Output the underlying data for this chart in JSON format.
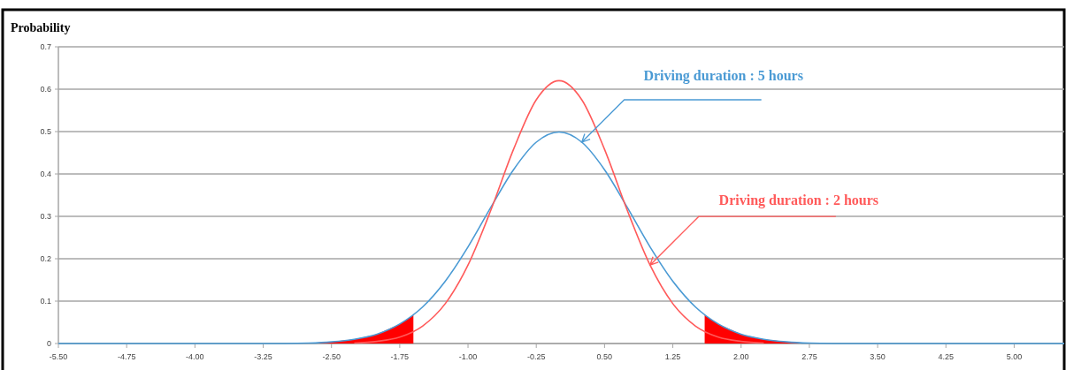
{
  "chart_data": {
    "type": "line",
    "ylabel": "Probability",
    "xlim": [
      -5.5,
      5.55
    ],
    "xticks": [
      {
        "value": -5.5,
        "label": "-5.50"
      },
      {
        "value": -4.75,
        "label": "-4.75"
      },
      {
        "value": -4,
        "label": "-4.00"
      },
      {
        "value": -3.25,
        "label": "-3.25"
      },
      {
        "value": -2.5,
        "label": "-2.50"
      },
      {
        "value": -1.75,
        "label": "-1.75"
      },
      {
        "value": -1,
        "label": "-1.00"
      },
      {
        "value": -0.25,
        "label": "-0.25"
      },
      {
        "value": 0.5,
        "label": "0.50"
      },
      {
        "value": 1.25,
        "label": "1.25"
      },
      {
        "value": 2,
        "label": "2.00"
      },
      {
        "value": 2.75,
        "label": "2.75"
      },
      {
        "value": 3.5,
        "label": "3.50"
      },
      {
        "value": 4.25,
        "label": "4.25"
      },
      {
        "value": 5,
        "label": "5.00"
      }
    ],
    "ylim": [
      0,
      0.7
    ],
    "yticks": [
      0,
      0.1,
      0.2,
      0.3,
      0.4,
      0.5,
      0.6,
      0.7
    ],
    "grid": "y",
    "marker": "none",
    "line_style": "solid",
    "series": [
      {
        "type": "area",
        "color": "#ff0000",
        "x": [
          -2.75,
          -2.5,
          -2.25,
          -2,
          -1.75,
          -1.6,
          -1.6
        ],
        "values": [
          0.001,
          0.004,
          0.01,
          0.022,
          0.046,
          0.067,
          0
        ]
      },
      {
        "type": "area",
        "color": "#ff0000",
        "x": [
          1.6,
          1.6,
          1.75,
          2,
          2.25,
          2.5,
          2.75
        ],
        "values": [
          0,
          0.067,
          0.046,
          0.022,
          0.01,
          0.004,
          0.001
        ]
      },
      {
        "color": "#4a9ad4",
        "x": [
          -5.5,
          -4.5,
          -3.5,
          -3,
          -2.75,
          -2.5,
          -2.25,
          -2,
          -1.75,
          -1.5,
          -1.25,
          -1,
          -0.75,
          -0.5,
          -0.25,
          0,
          0.25,
          0.5,
          0.75,
          1,
          1.25,
          1.5,
          1.75,
          2,
          2.25,
          2.5,
          2.75,
          3,
          3.5,
          4.5,
          5.55
        ],
        "values": [
          0,
          0,
          0,
          0,
          0.001,
          0.004,
          0.01,
          0.022,
          0.046,
          0.086,
          0.147,
          0.228,
          0.321,
          0.41,
          0.475,
          0.499,
          0.475,
          0.41,
          0.321,
          0.228,
          0.147,
          0.086,
          0.046,
          0.022,
          0.01,
          0.004,
          0.001,
          0,
          0,
          0,
          0
        ]
      },
      {
        "color": "#ff5a5a",
        "x": [
          -2.25,
          -2,
          -1.75,
          -1.5,
          -1.25,
          -1,
          -0.75,
          -0.5,
          -0.25,
          0,
          0.25,
          0.5,
          0.75,
          1,
          1.25,
          1.5,
          1.75,
          2,
          2.25
        ],
        "values": [
          0.001,
          0.005,
          0.015,
          0.041,
          0.094,
          0.185,
          0.314,
          0.458,
          0.575,
          0.62,
          0.575,
          0.458,
          0.314,
          0.185,
          0.094,
          0.041,
          0.015,
          0.005,
          0.001
        ]
      }
    ],
    "annotations": [
      {
        "text": "Driving duration : 5 hours",
        "x": 0.25,
        "y": 0.475
      },
      {
        "text": "Driving duration : 2 hours",
        "x": 1,
        "y": 0.185
      }
    ]
  }
}
